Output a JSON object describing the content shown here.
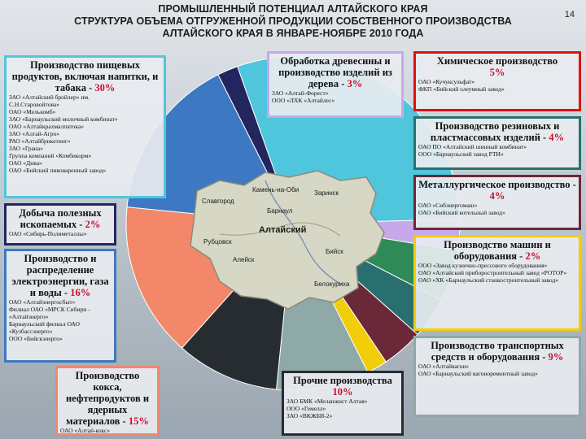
{
  "header": {
    "line1": "ПРОМЫШЛЕННЫЙ ПОТЕНЦИАЛ АЛТАЙСКОГО КРАЯ",
    "line2": "СТРУКТУРА ОБЪЕМА ОТГРУЖЕННОЙ ПРОДУКЦИИ СОБСТВЕННОГО ПРОИЗВОДСТВА",
    "line3": "АЛТАЙСКОГО КРАЯ В ЯНВАРЕ-НОЯБРЕ 2010 ГОДА",
    "page_number": "14"
  },
  "map": {
    "center_label": "Алтайский",
    "town_labels": [
      "Рубцовск",
      "Бийск",
      "Барнаул",
      "Славгород",
      "Заринск",
      "Камень-на-Оби",
      "Алейск",
      "Белокуриха"
    ]
  },
  "chart_data": {
    "type": "pie",
    "slices": [
      {
        "name": "Производство пищевых продуктов, включая напитки, и табака",
        "value": 30,
        "color": "#4fc6dc"
      },
      {
        "name": "Обработка древесины и производство изделий из дерева",
        "value": 3,
        "color": "#c9a8ea"
      },
      {
        "name": "Химическое производство",
        "value": 5,
        "color": "#2e8b57"
      },
      {
        "name": "Производство резиновых и пластмассовых изделий",
        "value": 4,
        "color": "#2a6f6f"
      },
      {
        "name": "Металлургическое производство",
        "value": 4,
        "color": "#6b2838"
      },
      {
        "name": "Производство машин и оборудования",
        "value": 2,
        "color": "#f2cd0a"
      },
      {
        "name": "Производство транспортных средств и оборудования",
        "value": 9,
        "color": "#8fa8a8"
      },
      {
        "name": "Прочие производства",
        "value": 10,
        "color": "#272c30"
      },
      {
        "name": "Производство кокса, нефтепродуктов и ядерных материалов",
        "value": 15,
        "color": "#f2876a"
      },
      {
        "name": "Производство и распределение электроэнергии, газа и воды",
        "value": 16,
        "color": "#3d79c2"
      },
      {
        "name": "Добыча полезных ископаемых",
        "value": 2,
        "color": "#23255e"
      }
    ]
  },
  "boxes": {
    "food": {
      "title": "Производство пищевых продуктов, включая напитки, и табака -",
      "pct": "30%",
      "color": "#4fc6dc",
      "companies": [
        "ЗАО «Алтайский бройлер» им.",
        "С.Н.Старовойтова»",
        "ОАО «Мелькомб»",
        "ЗАО «Барнаульский молочный комбинат»",
        "ОАО «Алтайкрахмалпатока»",
        "ЗАО «Алтай-Агро»",
        "РАО «Алтайбрикетинг»",
        "ЗАО «Грана»",
        "Группа компаний «Комбикорм»",
        "ОАО «Дива»",
        "ОАО «Бийский пивоваренный завод»"
      ]
    },
    "wood": {
      "title": "Обработка древесины и производство изделий из дерева -",
      "pct": "3%",
      "color": "#c9a8ea",
      "companies": [
        "ЗАО «Алтай-Форест»",
        "ООО «ЛХК «Алтайлес»"
      ]
    },
    "chemical": {
      "title": "Химическое производство",
      "pct": "5%",
      "color": "#e01010",
      "companies": [
        "ОАО «Кучуксульфат»",
        "ФКП «Бийский олеумный завод»"
      ]
    },
    "rubber": {
      "title": "Производство резиновых и пластмассовых изделий -",
      "pct": "4%",
      "color": "#2a6f6f",
      "companies": [
        "ОАО ПО «Алтайский шинный комбинат»",
        "ООО «Барнаульский завод РТИ»"
      ]
    },
    "metal": {
      "title": "Металлургическое производство -",
      "pct": "4%",
      "color": "#6b2838",
      "companies": [
        "ОАО «Сибэнергомаш»",
        "ОАО «Бийский котельный завод»"
      ]
    },
    "machines": {
      "title": "Производство машин и оборудования -",
      "pct": "2%",
      "color": "#f2cd0a",
      "companies": [
        "ООО «Завод кузнечно-прессового оборудования»",
        "ОАО «Алтайский приборостроительный завод «РОТОР»",
        "ОАО «ХК «Барнаульский станкостроительный завод»"
      ]
    },
    "transport": {
      "title": "Производство транспортных средств и оборудования -",
      "pct": "9%",
      "color": "#8fa8a8",
      "companies": [
        "ОАО «Алтайвагон»",
        "ОАО «Барнаульский вагоноремонтный завод»"
      ]
    },
    "other": {
      "title": "Прочие производства",
      "pct": "10%",
      "color": "#272c30",
      "companies": [
        "ЗАО БМК «Меланжист Алтая»",
        "ООО «Гемелл»",
        "ЗАО «ВКЖБИ-2»"
      ]
    },
    "coke": {
      "title": "Производство кокса, нефтепродуктов и ядерных материалов -",
      "pct": "15%",
      "color": "#f2876a",
      "companies": [
        "ОАО «Алтай-кокс»"
      ]
    },
    "energy": {
      "title": "Производство и распределение электроэнергии, газа и воды -",
      "pct": "16%",
      "color": "#3d79c2",
      "companies": [
        "ОАО «Алтайэнергосбыт»",
        "Филиал ОАО «МРСК Сибири - «Алтайэнерго»",
        "Барнаульский филиал ОАО «Кузбассэнерго»",
        "ООО «Бийскэнерго»"
      ]
    },
    "mining": {
      "title": "Добыча полезных ископаемых -",
      "pct": "2%",
      "color": "#23255e",
      "companies": [
        "ОАО «Сибирь-Полиметаллы»"
      ]
    }
  }
}
